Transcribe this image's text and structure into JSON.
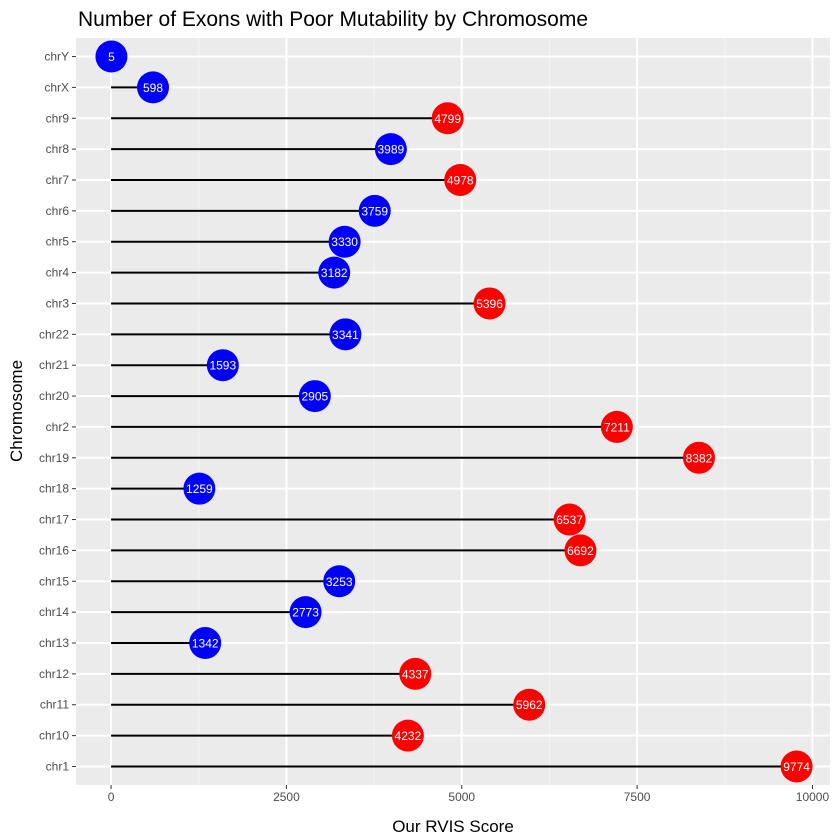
{
  "chart_data": {
    "type": "lollipop",
    "title": "Number of Exons with Poor Mutability by Chromosome",
    "xlabel": "Our RVIS Score",
    "ylabel": "Chromosome",
    "xlim": [
      -500,
      10250
    ],
    "x_ticks": [
      0,
      2500,
      5000,
      7500,
      10000
    ],
    "grid": true,
    "colors": {
      "high": "#ff0000",
      "low": "#0000ff"
    },
    "categories": [
      "chr1",
      "chr10",
      "chr11",
      "chr12",
      "chr13",
      "chr14",
      "chr15",
      "chr16",
      "chr17",
      "chr18",
      "chr19",
      "chr2",
      "chr20",
      "chr21",
      "chr22",
      "chr3",
      "chr4",
      "chr5",
      "chr6",
      "chr7",
      "chr8",
      "chr9",
      "chrX",
      "chrY"
    ],
    "values": [
      9774,
      4232,
      5962,
      4337,
      1342,
      2773,
      3253,
      6692,
      6537,
      1259,
      8382,
      7211,
      2905,
      1593,
      3341,
      5396,
      3182,
      3330,
      3759,
      4978,
      3989,
      4799,
      598,
      5
    ],
    "groups": [
      "high",
      "high",
      "high",
      "high",
      "low",
      "low",
      "low",
      "high",
      "high",
      "low",
      "high",
      "high",
      "low",
      "low",
      "low",
      "high",
      "low",
      "low",
      "low",
      "high",
      "low",
      "high",
      "low",
      "low"
    ]
  }
}
